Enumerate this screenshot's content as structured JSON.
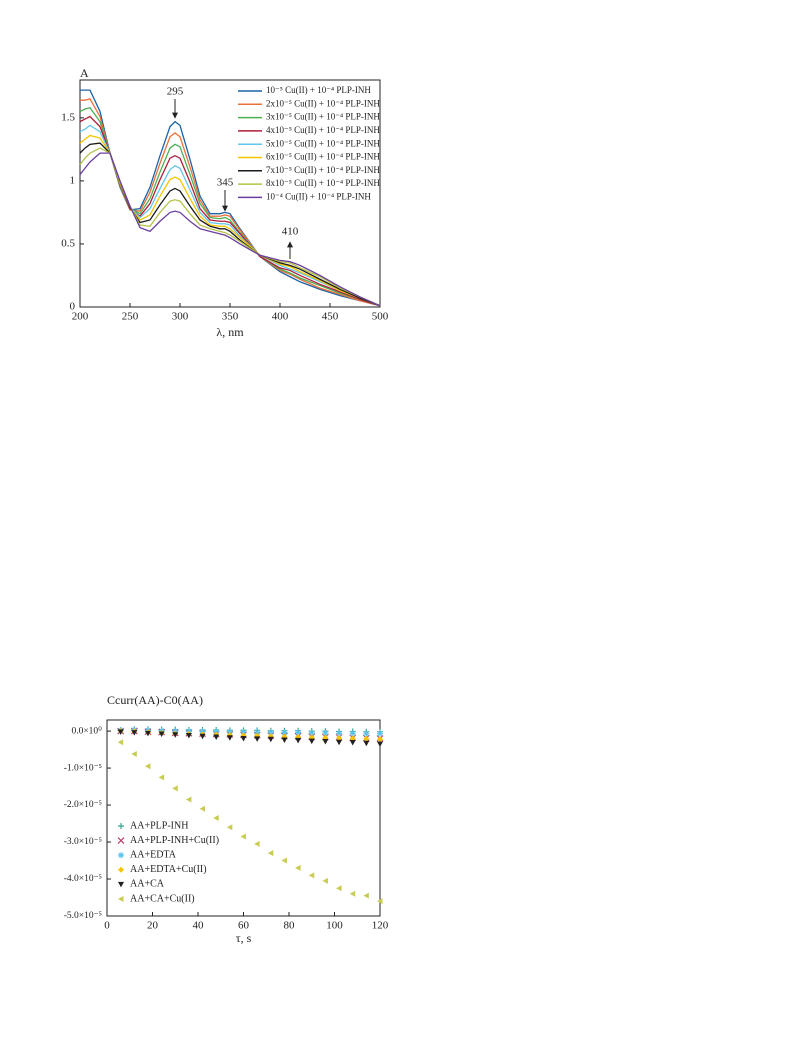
{
  "chart_data": [
    {
      "type": "line",
      "y_label": "A",
      "x_label": "λ, nm",
      "xlim": [
        200,
        500
      ],
      "ylim": [
        0,
        1.8
      ],
      "xticks": [
        200,
        250,
        300,
        350,
        400,
        450,
        500
      ],
      "yticks": [
        0,
        0.5,
        1,
        1.5
      ],
      "annotations": [
        "295",
        "345",
        "410"
      ],
      "legend": "upper right",
      "x": [
        200,
        205,
        210,
        220,
        230,
        240,
        250,
        260,
        270,
        280,
        290,
        295,
        300,
        310,
        320,
        330,
        340,
        345,
        350,
        360,
        380,
        400,
        410,
        420,
        440,
        460,
        480,
        500
      ],
      "series": [
        {
          "name": "10⁻⁵ Cu(II) + 10⁻⁴ PLP-INH",
          "color": "#1b63a8",
          "values": [
            1.72,
            1.72,
            1.72,
            1.55,
            1.22,
            0.95,
            0.77,
            0.78,
            0.95,
            1.2,
            1.43,
            1.47,
            1.44,
            1.17,
            0.88,
            0.74,
            0.74,
            0.75,
            0.74,
            0.62,
            0.4,
            0.28,
            0.24,
            0.2,
            0.14,
            0.09,
            0.05,
            0.01
          ]
        },
        {
          "name": "2x10⁻⁵ Cu(II) + 10⁻⁴ PLP-INH",
          "color": "#e8703a",
          "values": [
            1.64,
            1.64,
            1.65,
            1.51,
            1.22,
            0.96,
            0.77,
            0.76,
            0.91,
            1.14,
            1.35,
            1.38,
            1.35,
            1.11,
            0.85,
            0.72,
            0.72,
            0.73,
            0.72,
            0.61,
            0.4,
            0.29,
            0.26,
            0.22,
            0.15,
            0.1,
            0.05,
            0.01
          ]
        },
        {
          "name": "3x10⁻⁵ Cu(II) + 10⁻⁴ PLP-INH",
          "color": "#4caf50",
          "values": [
            1.55,
            1.57,
            1.58,
            1.47,
            1.22,
            0.96,
            0.78,
            0.74,
            0.86,
            1.07,
            1.26,
            1.29,
            1.27,
            1.05,
            0.82,
            0.71,
            0.7,
            0.71,
            0.69,
            0.59,
            0.4,
            0.3,
            0.27,
            0.23,
            0.17,
            0.11,
            0.06,
            0.01
          ]
        },
        {
          "name": "4x10⁻⁵ Cu(II) + 10⁻⁴ PLP-INH",
          "color": "#b01c3c",
          "values": [
            1.47,
            1.49,
            1.51,
            1.43,
            1.22,
            0.97,
            0.78,
            0.72,
            0.82,
            1.01,
            1.18,
            1.2,
            1.18,
            0.99,
            0.78,
            0.69,
            0.68,
            0.68,
            0.67,
            0.58,
            0.4,
            0.31,
            0.29,
            0.25,
            0.18,
            0.12,
            0.06,
            0.01
          ]
        },
        {
          "name": "5x10⁻⁵ Cu(II) + 10⁻⁴ PLP-INH",
          "color": "#62c6ec",
          "values": [
            1.39,
            1.41,
            1.44,
            1.39,
            1.22,
            0.98,
            0.79,
            0.71,
            0.78,
            0.94,
            1.09,
            1.12,
            1.1,
            0.93,
            0.75,
            0.67,
            0.66,
            0.66,
            0.65,
            0.56,
            0.41,
            0.33,
            0.3,
            0.27,
            0.2,
            0.13,
            0.07,
            0.01
          ]
        },
        {
          "name": "6x10⁻⁵ Cu(II) + 10⁻⁴ PLP-INH",
          "color": "#f5c400",
          "values": [
            1.3,
            1.33,
            1.36,
            1.34,
            1.22,
            0.98,
            0.79,
            0.69,
            0.73,
            0.88,
            1.01,
            1.03,
            1.01,
            0.86,
            0.72,
            0.65,
            0.64,
            0.64,
            0.62,
            0.55,
            0.41,
            0.34,
            0.32,
            0.28,
            0.21,
            0.13,
            0.07,
            0.01
          ]
        },
        {
          "name": "7x10⁻⁵ Cu(II) + 10⁻⁴ PLP-INH",
          "color": "#1a1a1a",
          "values": [
            1.22,
            1.26,
            1.29,
            1.3,
            1.22,
            0.99,
            0.79,
            0.67,
            0.69,
            0.81,
            0.92,
            0.94,
            0.92,
            0.8,
            0.69,
            0.64,
            0.62,
            0.62,
            0.6,
            0.53,
            0.41,
            0.35,
            0.33,
            0.3,
            0.22,
            0.14,
            0.07,
            0.01
          ]
        },
        {
          "name": "8x10⁻⁵ Cu(II) + 10⁻⁴ PLP-INH",
          "color": "#b5c24a",
          "values": [
            1.13,
            1.18,
            1.22,
            1.26,
            1.22,
            0.99,
            0.8,
            0.65,
            0.64,
            0.75,
            0.84,
            0.85,
            0.84,
            0.74,
            0.65,
            0.62,
            0.6,
            0.59,
            0.57,
            0.52,
            0.41,
            0.36,
            0.35,
            0.31,
            0.24,
            0.15,
            0.08,
            0.01
          ]
        },
        {
          "name": "10⁻⁴ Cu(II) + 10⁻⁴ PLP-INH",
          "color": "#6b3fa0",
          "values": [
            1.05,
            1.1,
            1.15,
            1.22,
            1.22,
            1.0,
            0.8,
            0.63,
            0.6,
            0.68,
            0.75,
            0.76,
            0.75,
            0.68,
            0.62,
            0.6,
            0.58,
            0.57,
            0.55,
            0.5,
            0.41,
            0.37,
            0.36,
            0.33,
            0.25,
            0.16,
            0.08,
            0.01
          ]
        }
      ]
    },
    {
      "type": "scatter",
      "y_label": "Ccurr(AA)-C0(AA)",
      "x_label": "τ, s",
      "xlim": [
        0,
        120
      ],
      "ylim": [
        -5e-05,
        3e-06
      ],
      "xticks": [
        0,
        20,
        40,
        60,
        80,
        100,
        120
      ],
      "yticks": [
        {
          "value": 0,
          "label": "0.0×10⁰"
        },
        {
          "value": -1e-05,
          "label": "-1.0×10⁻⁵"
        },
        {
          "value": -2e-05,
          "label": "-2.0×10⁻⁵"
        },
        {
          "value": -3e-05,
          "label": "-3.0×10⁻⁵"
        },
        {
          "value": -4e-05,
          "label": "-4.0×10⁻⁵"
        },
        {
          "value": -5e-05,
          "label": "-5.0×10⁻⁵"
        }
      ],
      "legend": "lower left",
      "x": [
        6,
        12,
        18,
        24,
        30,
        36,
        42,
        48,
        54,
        60,
        66,
        72,
        78,
        84,
        90,
        96,
        102,
        108,
        114,
        120
      ],
      "series": [
        {
          "name": "AA+PLP-INH",
          "color": "#3aa58f",
          "marker": "plus",
          "values": [
            3e-07,
            5e-07,
            5e-07,
            4e-07,
            4e-07,
            3e-07,
            3e-07,
            3e-07,
            2e-07,
            2e-07,
            2e-07,
            1e-07,
            1e-07,
            1e-07,
            0,
            0,
            -1e-07,
            -1e-07,
            -2e-07,
            -2e-07
          ]
        },
        {
          "name": "AA+PLP-INH+Cu(II)",
          "color": "#c0406a",
          "marker": "x",
          "values": [
            0,
            0,
            -2e-07,
            -3e-07,
            -5e-07,
            -6e-07,
            -7e-07,
            -8e-07,
            -9e-07,
            -1e-06,
            -1.1e-06,
            -1.2e-06,
            -1.3e-06,
            -1.4e-06,
            -1.5e-06,
            -1.6e-06,
            -1.7e-06,
            -1.8e-06,
            -1.9e-06,
            -2e-06
          ]
        },
        {
          "name": "AA+EDTA",
          "color": "#5cc3ea",
          "marker": "star",
          "values": [
            2e-07,
            3e-07,
            2e-07,
            1e-07,
            0,
            0,
            -1e-07,
            -1e-07,
            -2e-07,
            -2e-07,
            -3e-07,
            -3e-07,
            -4e-07,
            -4e-07,
            -5e-07,
            -5e-07,
            -6e-07,
            -6e-07,
            -7e-07,
            -7e-07
          ]
        },
        {
          "name": "AA+EDTA+Cu(II)",
          "color": "#f5c400",
          "marker": "diamond",
          "values": [
            0,
            -1e-07,
            -3e-07,
            -5e-07,
            -7e-07,
            -8e-07,
            -9e-07,
            -1e-06,
            -1.1e-06,
            -1.2e-06,
            -1.3e-06,
            -1.4e-06,
            -1.5e-06,
            -1.6e-06,
            -1.7e-06,
            -1.8e-06,
            -1.9e-06,
            -2e-06,
            -2.1e-06,
            -2.2e-06
          ]
        },
        {
          "name": "AA+CA",
          "color": "#222222",
          "marker": "triangle-down",
          "values": [
            -2e-07,
            -4e-07,
            -6e-07,
            -8e-07,
            -1e-06,
            -1.2e-06,
            -1.4e-06,
            -1.6e-06,
            -1.8e-06,
            -2e-06,
            -2.1e-06,
            -2.2e-06,
            -2.4e-06,
            -2.5e-06,
            -2.7e-06,
            -2.8e-06,
            -3e-06,
            -3.1e-06,
            -3.3e-06,
            -3.5e-06
          ]
        },
        {
          "name": "AA+CA+Cu(II)",
          "color": "#c8cc50",
          "marker": "triangle-left",
          "values": [
            -3e-06,
            -6.2e-06,
            -9.5e-06,
            -1.25e-05,
            -1.55e-05,
            -1.85e-05,
            -2.1e-05,
            -2.35e-05,
            -2.6e-05,
            -2.85e-05,
            -3.05e-05,
            -3.3e-05,
            -3.5e-05,
            -3.7e-05,
            -3.9e-05,
            -4.05e-05,
            -4.25e-05,
            -4.4e-05,
            -4.45e-05,
            -4.6e-05
          ]
        }
      ]
    }
  ]
}
